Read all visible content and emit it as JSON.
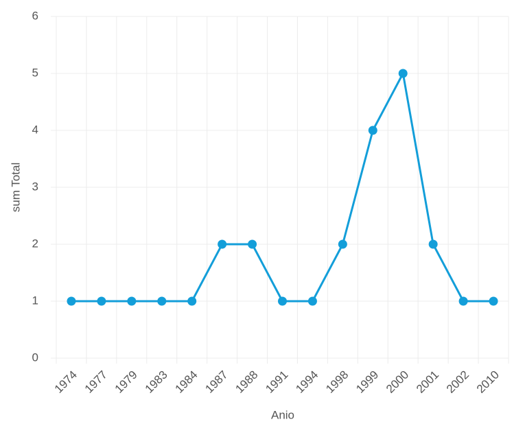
{
  "chart_data": {
    "type": "line",
    "x_label": "Anio",
    "y_label": "sum Total",
    "categories": [
      "1974",
      "1977",
      "1979",
      "1983",
      "1984",
      "1987",
      "1988",
      "1991",
      "1994",
      "1998",
      "1999",
      "2000",
      "2001",
      "2002",
      "2010"
    ],
    "series": [
      {
        "name": "sum Total",
        "color": "#139ed9",
        "values": [
          1,
          1,
          1,
          1,
          1,
          2,
          2,
          1,
          1,
          2,
          4,
          5,
          2,
          1,
          1
        ]
      }
    ],
    "ylim": [
      0,
      6
    ],
    "yticks": [
      0,
      1,
      2,
      3,
      4,
      5,
      6
    ],
    "grid": true
  }
}
